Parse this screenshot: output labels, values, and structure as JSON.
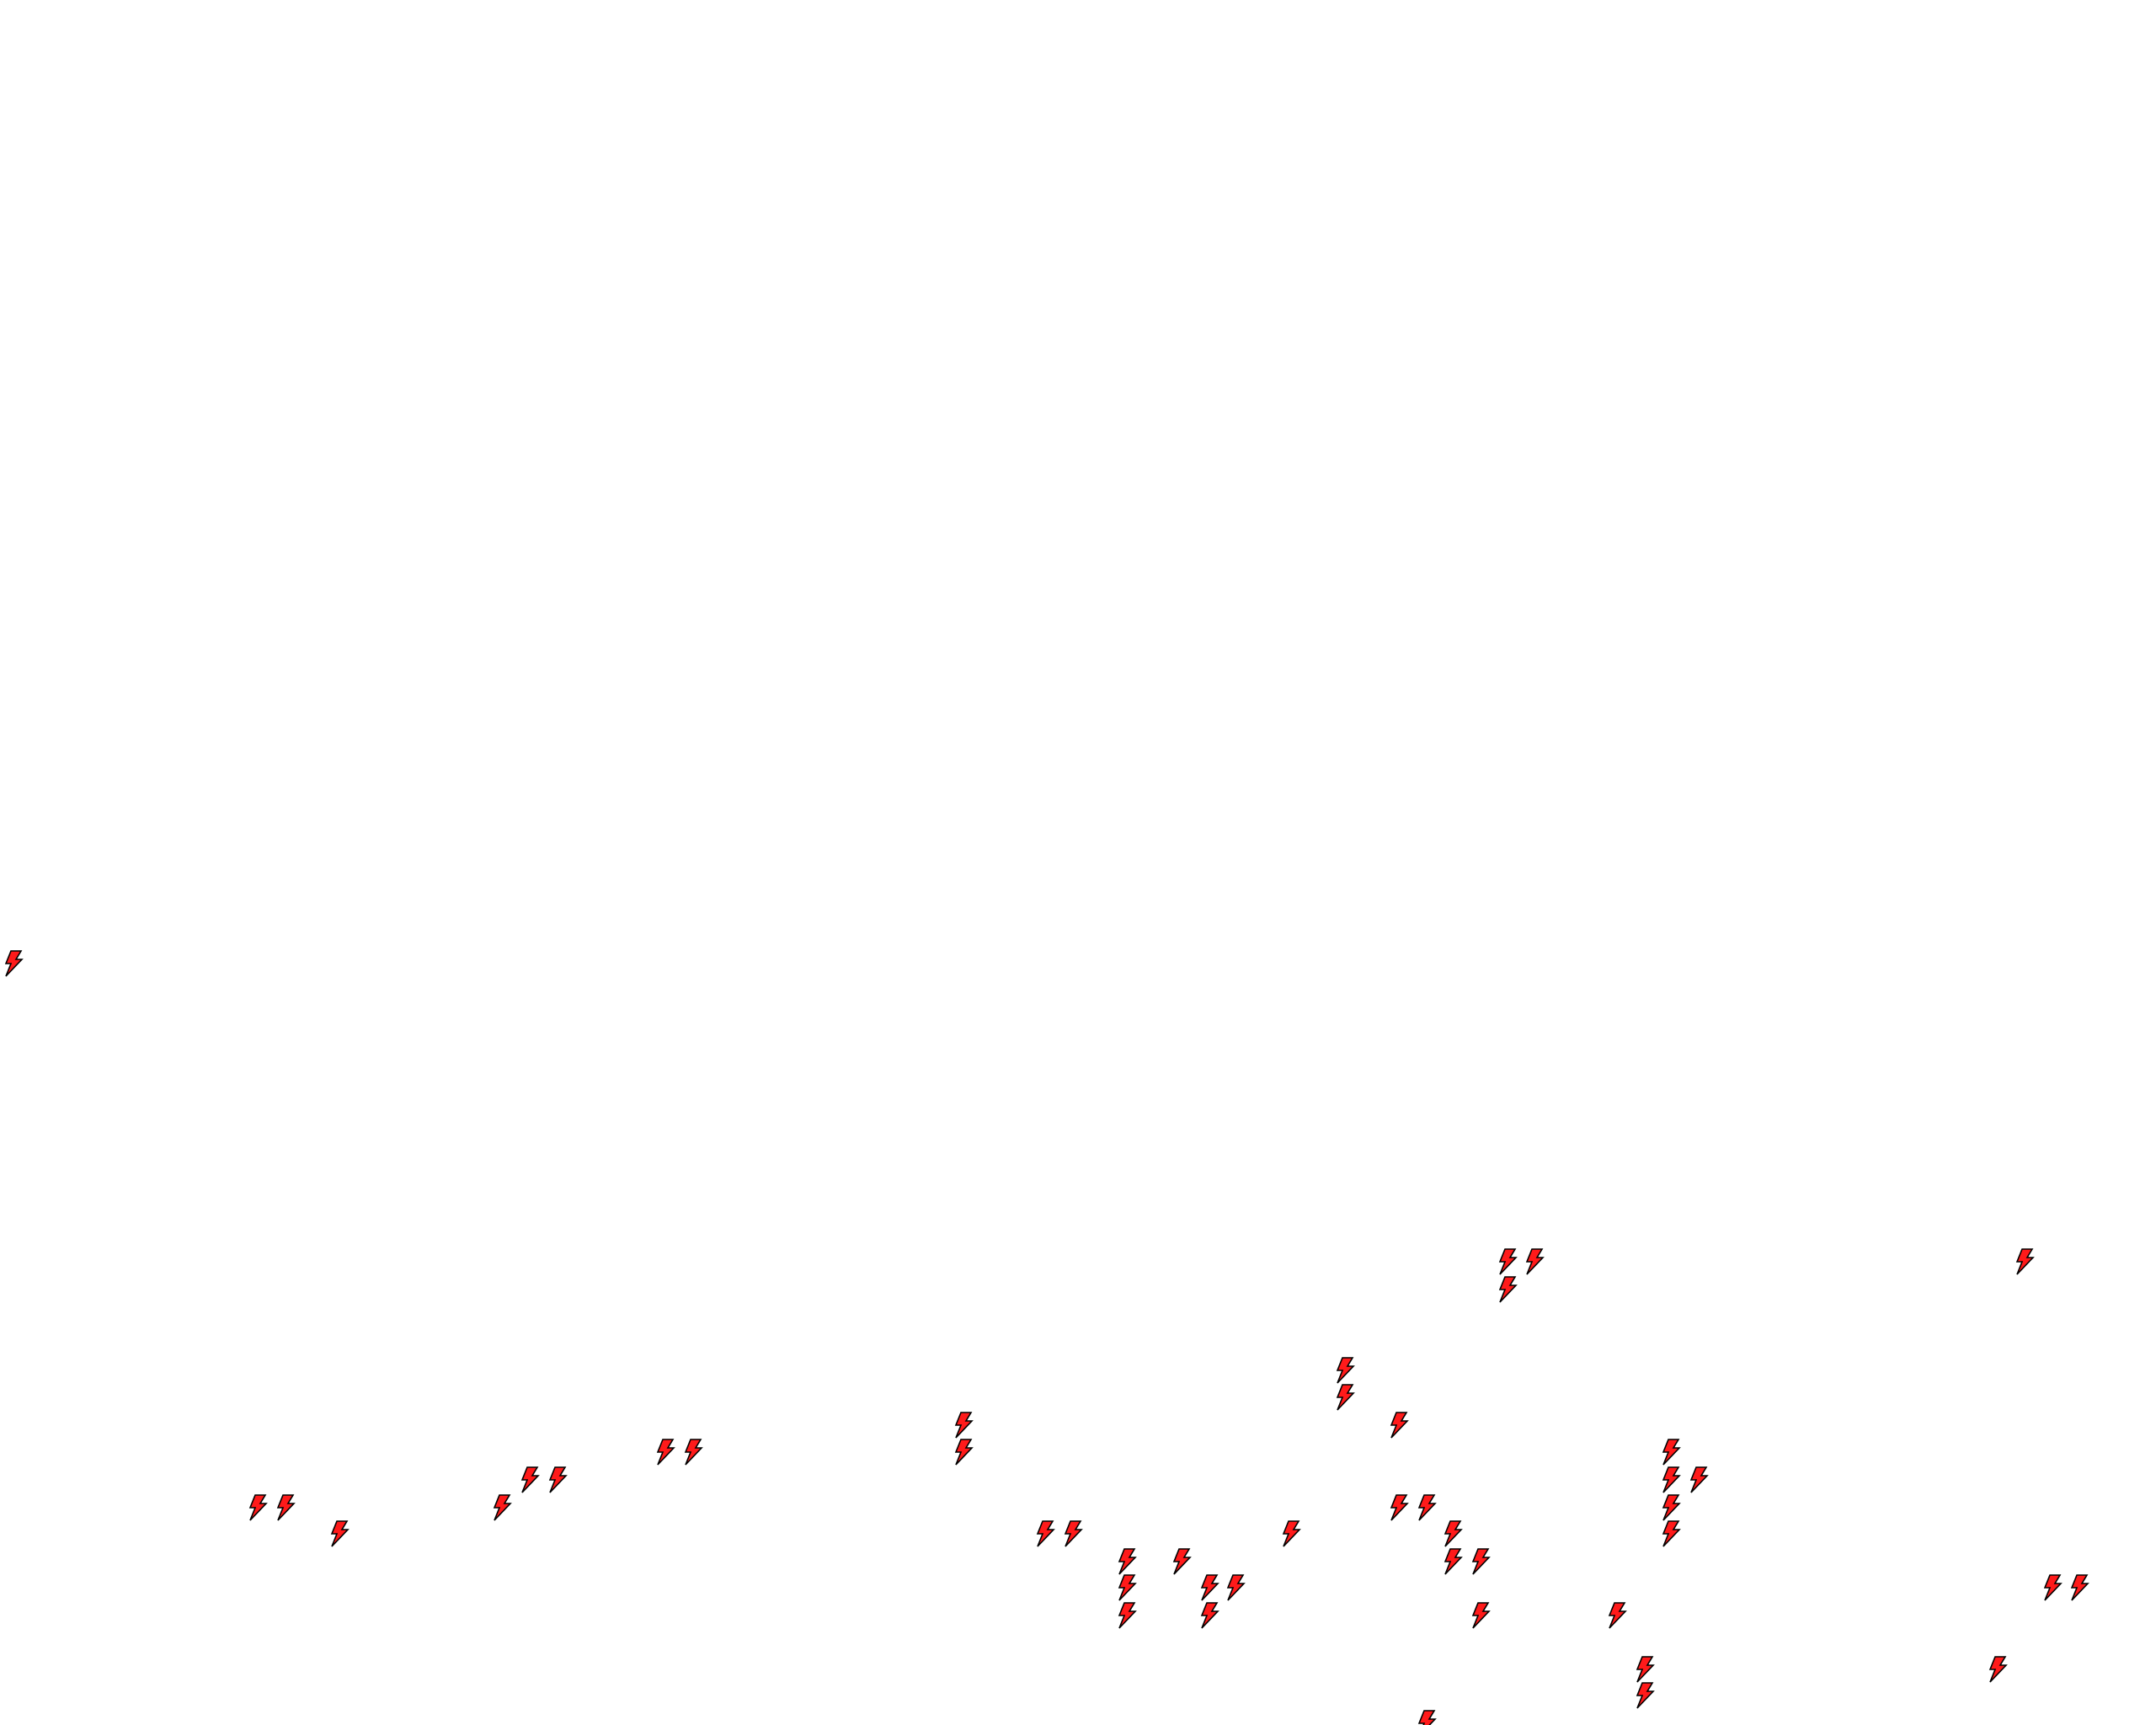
{
  "map": {
    "background": "#ffffff",
    "marker_icon": "lightning-bolt-icon",
    "marker_fill": "#ff1a1a",
    "marker_stroke": "#000000"
  }
}
